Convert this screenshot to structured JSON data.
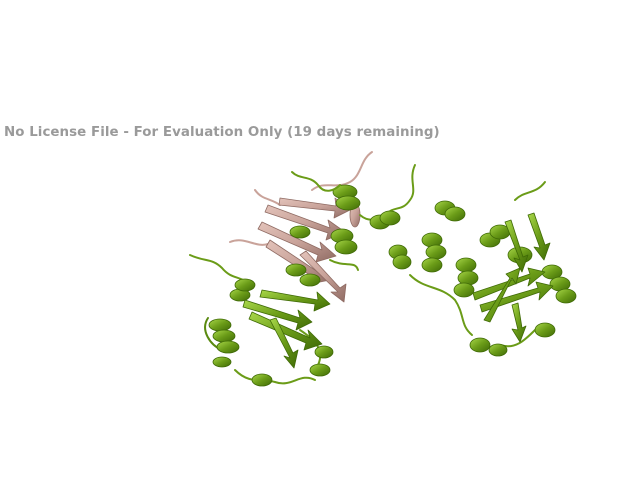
{
  "watermark": {
    "text": "No License File - For Evaluation Only (19 days remaining)"
  },
  "colors": {
    "background": "#ffffff",
    "watermark": "#9a9a9a",
    "chain_green": "#6b9c18",
    "chain_green_dark": "#3f6a06",
    "chain_green_light": "#a9d84a",
    "chain_pink": "#c9a39a",
    "chain_pink_dark": "#8f6b63"
  },
  "scene": {
    "representation": "cartoon",
    "chains": [
      "green",
      "pink"
    ]
  }
}
